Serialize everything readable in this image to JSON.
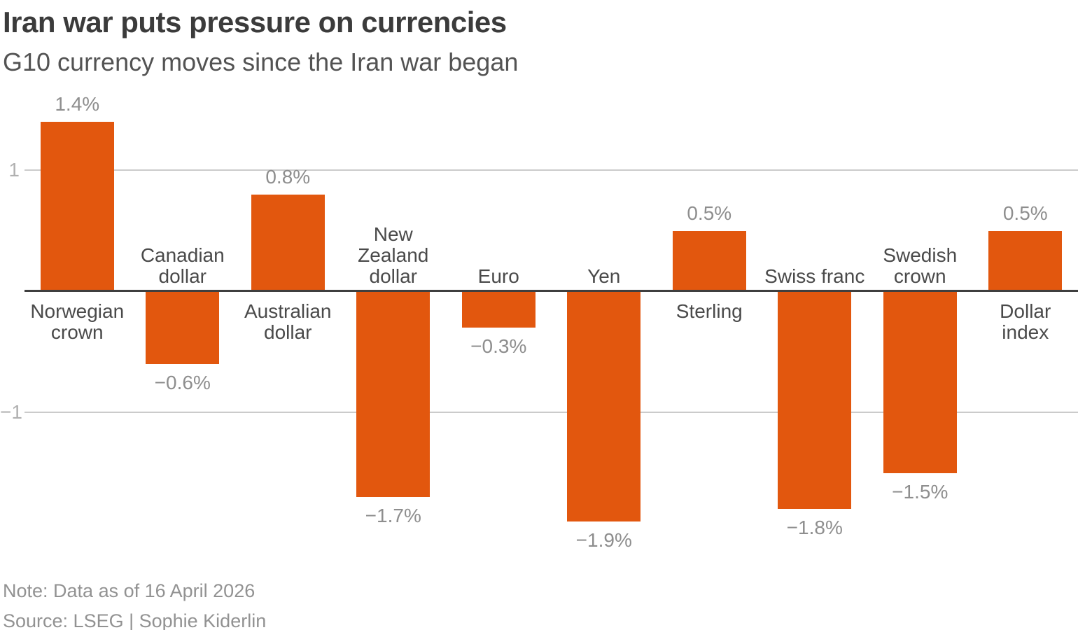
{
  "header": {
    "title": "Iran war puts pressure on currencies",
    "subtitle": "G10 currency moves since the Iran war began"
  },
  "chart_data": {
    "type": "bar",
    "title": "Iran war puts pressure on currencies",
    "subtitle": "G10 currency moves since the Iran war began",
    "unit": "%",
    "categories": [
      "Norwegian crown",
      "Canadian dollar",
      "Australian dollar",
      "New Zealand dollar",
      "Euro",
      "Yen",
      "Sterling",
      "Swiss franc",
      "Swedish crown",
      "Dollar index"
    ],
    "values": [
      1.4,
      -0.6,
      0.8,
      -1.7,
      -0.3,
      -1.9,
      0.5,
      -1.8,
      -1.5,
      0.5
    ],
    "value_labels": [
      "1.4%",
      "−0.6%",
      "0.8%",
      "−1.7%",
      "−0.3%",
      "−1.9%",
      "0.5%",
      "−1.8%",
      "−1.5%",
      "0.5%"
    ],
    "category_label_lines": [
      [
        "Norwegian",
        "crown"
      ],
      [
        "Canadian",
        "dollar"
      ],
      [
        "Australian",
        "dollar"
      ],
      [
        "New",
        "Zealand",
        "dollar"
      ],
      [
        "Euro"
      ],
      [
        "Yen"
      ],
      [
        "Sterling"
      ],
      [
        "Swiss franc"
      ],
      [
        "Swedish",
        "crown"
      ],
      [
        "Dollar",
        "index"
      ]
    ],
    "yticks": [
      {
        "value": 1,
        "label": "1"
      },
      {
        "value": -1,
        "label": "−1"
      }
    ],
    "ylim": [
      -2.3,
      1.6
    ],
    "grid": true,
    "legend": false,
    "bar_color": "#e2570e",
    "xlabel": "",
    "ylabel": ""
  },
  "footer": {
    "note": "Note: Data as of 16 April 2026",
    "source": "Source: LSEG | Sophie Kiderlin"
  }
}
